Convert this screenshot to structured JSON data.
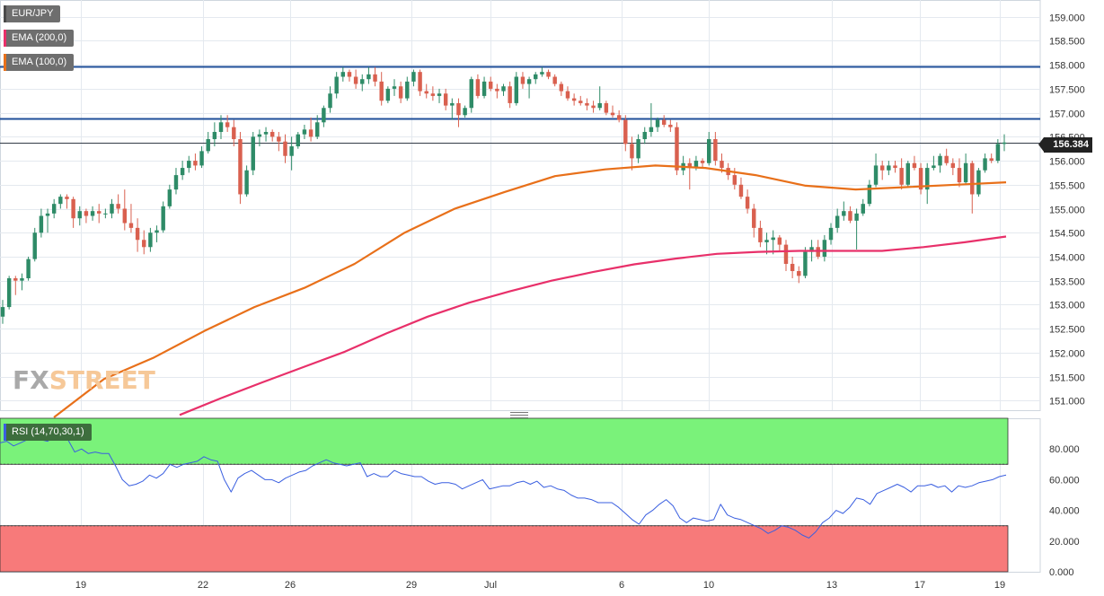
{
  "legend": {
    "symbol": "EUR/JPY",
    "ema200": "EMA (200,0)",
    "ema100": "EMA (100,0)",
    "rsi": "RSI (14,70,30,1)"
  },
  "colors": {
    "up": "#2e8b67",
    "down": "#d9604f",
    "ema200": "#e8306a",
    "ema100": "#e8701a",
    "hline": "#1f4f99",
    "rsi": "#3a5fe0",
    "overbought_zone": "#7af27a",
    "oversold_zone": "#f77a7a"
  },
  "logo": {
    "part1": "FX",
    "part2": "STREET"
  },
  "last_price_label": "156.384",
  "chart_data": [
    {
      "type": "candlestick",
      "title": "EUR/JPY",
      "x_labels": [
        "19",
        "22",
        "26",
        "29",
        "Jul",
        "6",
        "10",
        "13",
        "17",
        "19"
      ],
      "y_ticks": [
        151.0,
        151.5,
        152.0,
        152.5,
        153.0,
        153.5,
        154.0,
        154.5,
        155.0,
        155.5,
        156.0,
        156.5,
        157.0,
        157.5,
        158.0,
        158.5,
        159.0
      ],
      "y_tick_labels": [
        "151.000",
        "151.500",
        "152.000",
        "152.500",
        "153.000",
        "153.500",
        "154.000",
        "154.500",
        "155.000",
        "155.500",
        "156.000",
        "156.500",
        "157.000",
        "157.500",
        "158.000",
        "158.500",
        "159.000"
      ],
      "ylim": [
        150.8,
        159.35
      ],
      "horizontal_levels": [
        157.97,
        156.88,
        156.384
      ],
      "last_price": 156.384,
      "series": [
        {
          "name": "EMA (200,0)",
          "type": "line",
          "values": [
            150.7,
            151.05,
            151.38,
            151.7,
            152.02,
            152.4,
            152.75,
            153.04,
            153.28,
            153.5,
            153.68,
            153.84,
            153.96,
            154.06,
            154.1,
            154.12,
            154.12,
            154.12,
            154.2,
            154.3,
            154.42
          ]
        },
        {
          "name": "EMA (100,0)",
          "type": "line",
          "values": [
            150.65,
            151.45,
            151.9,
            152.45,
            152.95,
            153.35,
            153.85,
            154.5,
            155.0,
            155.35,
            155.68,
            155.82,
            155.9,
            155.85,
            155.7,
            155.48,
            155.4,
            155.45,
            155.5,
            155.55
          ]
        }
      ],
      "candles": [
        [
          152.75,
          153.1,
          152.6,
          152.95
        ],
        [
          152.95,
          153.6,
          152.9,
          153.55
        ],
        [
          153.55,
          153.6,
          153.2,
          153.5
        ],
        [
          153.5,
          153.65,
          153.3,
          153.55
        ],
        [
          153.55,
          154.0,
          153.5,
          153.95
        ],
        [
          153.95,
          154.6,
          153.9,
          154.5
        ],
        [
          154.5,
          155.0,
          154.4,
          154.85
        ],
        [
          154.85,
          155.0,
          154.5,
          154.9
        ],
        [
          154.9,
          155.2,
          154.8,
          155.1
        ],
        [
          155.1,
          155.3,
          155.0,
          155.25
        ],
        [
          155.25,
          155.3,
          155.0,
          155.2
        ],
        [
          155.2,
          155.25,
          154.6,
          154.8
        ],
        [
          154.8,
          155.05,
          154.65,
          154.95
        ],
        [
          154.95,
          155.0,
          154.7,
          154.85
        ],
        [
          154.85,
          155.05,
          154.75,
          154.95
        ],
        [
          154.95,
          155.1,
          154.7,
          154.9
        ],
        [
          154.9,
          155.0,
          154.8,
          154.9
        ],
        [
          154.9,
          155.2,
          154.8,
          155.1
        ],
        [
          155.1,
          155.3,
          154.9,
          155.0
        ],
        [
          155.0,
          155.4,
          154.55,
          154.7
        ],
        [
          154.7,
          155.1,
          154.5,
          154.6
        ],
        [
          154.6,
          154.8,
          154.1,
          154.35
        ],
        [
          154.35,
          154.55,
          154.05,
          154.2
        ],
        [
          154.2,
          154.6,
          154.1,
          154.5
        ],
        [
          154.5,
          154.65,
          154.3,
          154.55
        ],
        [
          154.55,
          155.15,
          154.5,
          155.05
        ],
        [
          155.05,
          155.5,
          155.0,
          155.4
        ],
        [
          155.4,
          155.85,
          155.3,
          155.7
        ],
        [
          155.7,
          156.0,
          155.6,
          155.85
        ],
        [
          155.85,
          156.1,
          155.75,
          156.0
        ],
        [
          156.0,
          156.15,
          155.8,
          155.9
        ],
        [
          155.9,
          156.3,
          155.85,
          156.2
        ],
        [
          156.2,
          156.6,
          156.15,
          156.45
        ],
        [
          156.45,
          156.8,
          156.3,
          156.6
        ],
        [
          156.6,
          156.95,
          156.45,
          156.8
        ],
        [
          156.8,
          156.95,
          156.6,
          156.7
        ],
        [
          156.7,
          156.85,
          156.3,
          156.45
        ],
        [
          156.45,
          156.6,
          155.1,
          155.3
        ],
        [
          155.3,
          155.9,
          155.25,
          155.8
        ],
        [
          155.8,
          156.6,
          155.7,
          156.5
        ],
        [
          156.5,
          156.65,
          156.3,
          156.55
        ],
        [
          156.55,
          156.7,
          156.4,
          156.6
        ],
        [
          156.6,
          156.65,
          156.4,
          156.5
        ],
        [
          156.5,
          156.6,
          156.2,
          156.4
        ],
        [
          156.4,
          156.55,
          155.95,
          156.1
        ],
        [
          156.1,
          156.5,
          155.8,
          156.3
        ],
        [
          156.3,
          156.6,
          156.25,
          156.55
        ],
        [
          156.55,
          156.75,
          156.45,
          156.65
        ],
        [
          156.65,
          156.9,
          156.4,
          156.5
        ],
        [
          156.5,
          156.95,
          156.45,
          156.8
        ],
        [
          156.8,
          157.15,
          156.7,
          157.1
        ],
        [
          157.1,
          157.55,
          157.0,
          157.4
        ],
        [
          157.4,
          157.85,
          157.3,
          157.75
        ],
        [
          157.75,
          157.95,
          157.65,
          157.85
        ],
        [
          157.85,
          157.9,
          157.65,
          157.75
        ],
        [
          157.75,
          157.9,
          157.5,
          157.6
        ],
        [
          157.6,
          157.8,
          157.45,
          157.7
        ],
        [
          157.7,
          157.95,
          157.6,
          157.8
        ],
        [
          157.8,
          157.95,
          157.55,
          157.65
        ],
        [
          157.65,
          157.85,
          157.15,
          157.25
        ],
        [
          157.25,
          157.55,
          157.2,
          157.5
        ],
        [
          157.5,
          157.7,
          157.35,
          157.55
        ],
        [
          157.55,
          157.65,
          157.2,
          157.3
        ],
        [
          157.3,
          157.75,
          157.25,
          157.65
        ],
        [
          157.65,
          157.9,
          157.55,
          157.85
        ],
        [
          157.85,
          157.9,
          157.35,
          157.45
        ],
        [
          157.45,
          157.6,
          157.3,
          157.4
        ],
        [
          157.4,
          157.55,
          157.25,
          157.35
        ],
        [
          157.35,
          157.5,
          157.2,
          157.4
        ],
        [
          157.4,
          157.5,
          157.05,
          157.15
        ],
        [
          157.15,
          157.3,
          156.85,
          157.2
        ],
        [
          157.2,
          157.3,
          156.7,
          156.95
        ],
        [
          156.95,
          157.15,
          156.9,
          157.1
        ],
        [
          157.1,
          157.75,
          157.0,
          157.7
        ],
        [
          157.7,
          157.8,
          157.3,
          157.35
        ],
        [
          157.35,
          157.75,
          157.3,
          157.65
        ],
        [
          157.65,
          157.75,
          157.45,
          157.5
        ],
        [
          157.5,
          157.6,
          157.3,
          157.45
        ],
        [
          157.45,
          157.6,
          157.35,
          157.55
        ],
        [
          157.55,
          157.65,
          157.1,
          157.2
        ],
        [
          157.2,
          157.85,
          157.15,
          157.75
        ],
        [
          157.75,
          157.85,
          157.5,
          157.6
        ],
        [
          157.6,
          157.75,
          157.3,
          157.7
        ],
        [
          157.7,
          157.85,
          157.6,
          157.8
        ],
        [
          157.8,
          157.95,
          157.75,
          157.85
        ],
        [
          157.85,
          157.9,
          157.7,
          157.75
        ],
        [
          157.75,
          157.8,
          157.55,
          157.6
        ],
        [
          157.6,
          157.65,
          157.35,
          157.45
        ],
        [
          157.45,
          157.55,
          157.25,
          157.3
        ],
        [
          157.3,
          157.4,
          157.15,
          157.25
        ],
        [
          157.25,
          157.35,
          157.15,
          157.2
        ],
        [
          157.2,
          157.3,
          157.05,
          157.15
        ],
        [
          157.15,
          157.25,
          157.0,
          157.1
        ],
        [
          157.1,
          157.55,
          157.05,
          157.2
        ],
        [
          157.2,
          157.25,
          156.95,
          157.0
        ],
        [
          157.0,
          157.15,
          156.9,
          156.95
        ],
        [
          156.95,
          157.05,
          156.8,
          156.85
        ],
        [
          156.85,
          156.95,
          156.2,
          156.35
        ],
        [
          156.35,
          156.5,
          155.8,
          156.05
        ],
        [
          156.05,
          156.55,
          155.95,
          156.45
        ],
        [
          156.45,
          156.7,
          156.35,
          156.6
        ],
        [
          156.6,
          157.2,
          156.5,
          156.7
        ],
        [
          156.7,
          156.9,
          156.6,
          156.85
        ],
        [
          156.85,
          156.95,
          156.7,
          156.75
        ],
        [
          156.75,
          156.85,
          156.6,
          156.7
        ],
        [
          156.7,
          156.8,
          155.7,
          155.8
        ],
        [
          155.8,
          156.1,
          155.7,
          155.95
        ],
        [
          155.95,
          156.05,
          155.4,
          155.85
        ],
        [
          155.85,
          156.1,
          155.8,
          156.0
        ],
        [
          156.0,
          156.05,
          155.85,
          155.95
        ],
        [
          155.95,
          156.6,
          155.9,
          156.45
        ],
        [
          156.45,
          156.6,
          155.9,
          156.0
        ],
        [
          156.0,
          156.15,
          155.75,
          155.85
        ],
        [
          155.85,
          155.95,
          155.6,
          155.7
        ],
        [
          155.7,
          155.85,
          155.4,
          155.5
        ],
        [
          155.5,
          155.65,
          155.2,
          155.25
        ],
        [
          155.25,
          155.4,
          154.9,
          155.0
        ],
        [
          155.0,
          155.1,
          154.4,
          154.6
        ],
        [
          154.6,
          154.75,
          154.2,
          154.3
        ],
        [
          154.3,
          154.5,
          154.05,
          154.35
        ],
        [
          154.35,
          154.55,
          154.05,
          154.4
        ],
        [
          154.4,
          154.45,
          154.1,
          154.25
        ],
        [
          154.25,
          154.35,
          153.7,
          153.85
        ],
        [
          153.85,
          154.0,
          153.55,
          153.7
        ],
        [
          153.7,
          153.8,
          153.45,
          153.6
        ],
        [
          153.6,
          154.2,
          153.55,
          154.1
        ],
        [
          154.1,
          154.35,
          153.9,
          154.2
        ],
        [
          154.2,
          154.35,
          153.95,
          154.0
        ],
        [
          154.0,
          154.45,
          153.9,
          154.35
        ],
        [
          154.35,
          154.7,
          154.25,
          154.6
        ],
        [
          154.6,
          155.0,
          154.5,
          154.85
        ],
        [
          154.85,
          155.15,
          154.75,
          154.95
        ],
        [
          154.95,
          155.05,
          154.7,
          154.75
        ],
        [
          154.75,
          155.0,
          154.15,
          154.9
        ],
        [
          154.9,
          155.2,
          154.85,
          155.1
        ],
        [
          155.1,
          155.6,
          155.05,
          155.5
        ],
        [
          155.5,
          156.15,
          155.45,
          155.9
        ],
        [
          155.9,
          156.0,
          155.6,
          155.8
        ],
        [
          155.8,
          156.0,
          155.7,
          155.9
        ],
        [
          155.9,
          156.0,
          155.75,
          155.85
        ],
        [
          155.85,
          156.05,
          155.4,
          155.5
        ],
        [
          155.5,
          156.0,
          155.45,
          155.95
        ],
        [
          155.95,
          156.1,
          155.8,
          155.85
        ],
        [
          155.85,
          155.95,
          155.3,
          155.4
        ],
        [
          155.4,
          155.95,
          155.1,
          155.85
        ],
        [
          155.85,
          156.1,
          155.8,
          155.9
        ],
        [
          155.9,
          156.15,
          155.75,
          156.1
        ],
        [
          156.1,
          156.25,
          155.9,
          155.95
        ],
        [
          155.95,
          156.05,
          155.7,
          155.85
        ],
        [
          155.85,
          156.05,
          155.45,
          155.55
        ],
        [
          155.55,
          156.15,
          155.5,
          155.95
        ],
        [
          155.95,
          156.0,
          154.9,
          155.3
        ],
        [
          155.3,
          155.85,
          155.25,
          155.8
        ],
        [
          155.8,
          156.15,
          155.75,
          156.05
        ],
        [
          156.05,
          156.15,
          155.95,
          156.0
        ],
        [
          156.0,
          156.45,
          155.95,
          156.35
        ],
        [
          156.35,
          156.55,
          156.2,
          156.38
        ]
      ]
    },
    {
      "type": "line",
      "title": "RSI (14,70,30,1)",
      "y_ticks": [
        0,
        20,
        40,
        60,
        80
      ],
      "y_tick_labels": [
        "0.000",
        "20.000",
        "40.000",
        "60.000",
        "80.000"
      ],
      "ylim": [
        0,
        100
      ],
      "zones": {
        "overbought": [
          70,
          100
        ],
        "oversold": [
          0,
          30
        ]
      },
      "series": [
        {
          "name": "RSI (14,70,30,1)",
          "values": [
            84,
            85,
            82,
            84,
            86,
            87,
            86,
            85,
            88,
            87,
            86,
            78,
            80,
            77,
            78,
            77,
            77,
            69,
            60,
            56,
            57,
            59,
            63,
            61,
            64,
            70,
            68,
            70,
            71,
            72,
            75,
            73,
            72,
            60,
            52,
            61,
            64,
            66,
            63,
            60,
            60,
            58,
            61,
            63,
            65,
            66,
            69,
            71,
            73,
            71,
            70,
            69,
            70,
            71,
            62,
            64,
            62,
            62,
            66,
            64,
            63,
            62,
            62,
            59,
            57,
            58,
            58,
            57,
            54,
            56,
            58,
            60,
            54,
            55,
            56,
            56,
            58,
            59,
            57,
            59,
            55,
            56,
            54,
            53,
            50,
            48,
            48,
            47,
            45,
            45,
            45,
            42,
            38,
            34,
            31,
            37,
            40,
            44,
            47,
            43,
            35,
            32,
            35,
            34,
            33,
            34,
            44,
            37,
            35,
            34,
            32,
            30,
            28,
            25,
            27,
            30,
            29,
            27,
            24,
            22,
            26,
            32,
            35,
            40,
            38,
            42,
            48,
            47,
            44,
            51,
            53,
            55,
            57,
            55,
            52,
            56,
            56,
            57,
            55,
            56,
            52,
            56,
            55,
            56,
            58,
            59,
            60,
            62,
            63
          ]
        }
      ]
    }
  ]
}
